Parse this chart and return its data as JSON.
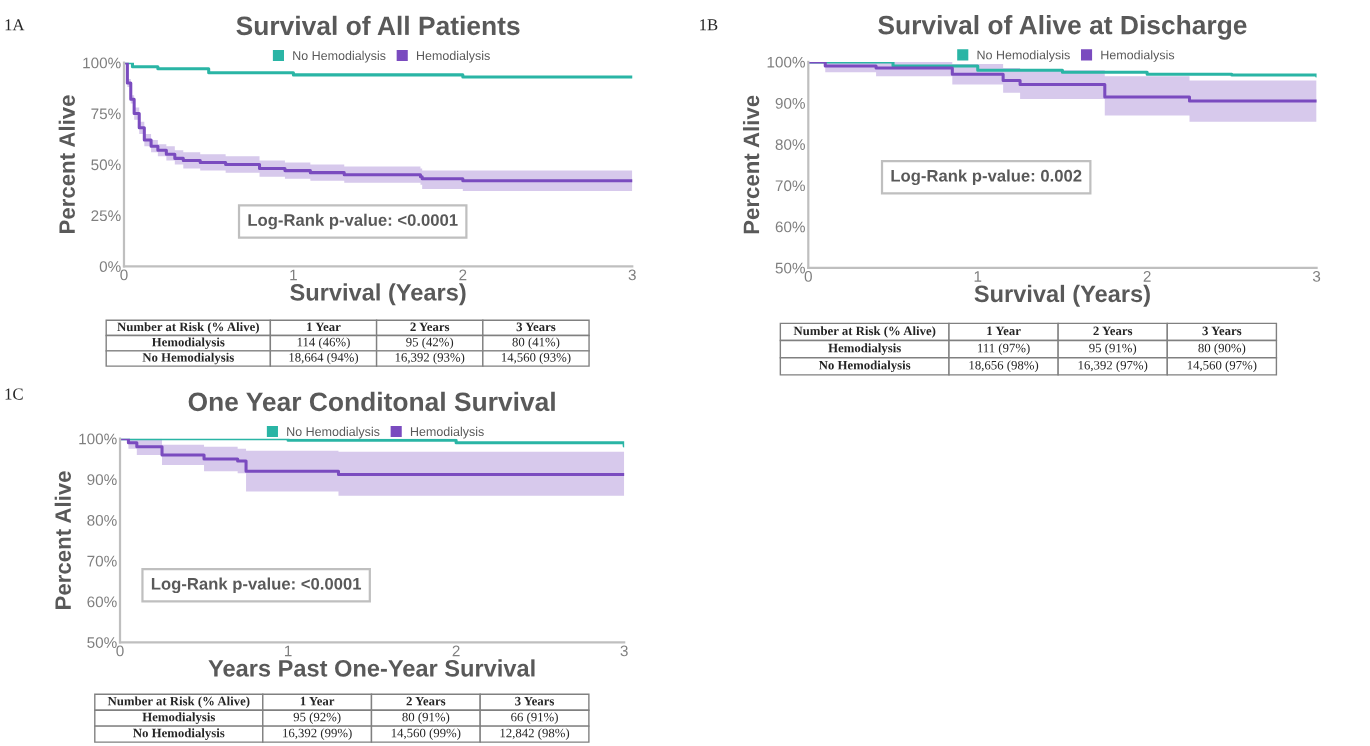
{
  "chart_data": [
    {
      "type": "step",
      "title": "Survival of All Patients",
      "xlabel": "Survival (Years)",
      "ylabel": "Percent Alive",
      "xlim": [
        0,
        3
      ],
      "xticks": [
        0,
        1,
        2,
        3
      ],
      "ylim": [
        0,
        100
      ],
      "yticks": [
        {
          "value": 0,
          "label": "0%"
        },
        {
          "value": 25,
          "label": "25%"
        },
        {
          "value": 50,
          "label": "50%"
        },
        {
          "value": 75,
          "label": "75%"
        },
        {
          "value": 100,
          "label": "100%"
        }
      ],
      "legend": "top",
      "grid": false,
      "series": [
        {
          "name": "No Hemodialysis",
          "color": "#2ab5a5",
          "x": [
            0,
            0.05,
            0.2,
            0.5,
            1,
            1.5,
            2,
            3
          ],
          "values": [
            100,
            98,
            97,
            95,
            94,
            94,
            93,
            93
          ]
        },
        {
          "name": "Hemodialysis",
          "color": "#7a4bbf",
          "x": [
            0,
            0.02,
            0.04,
            0.06,
            0.09,
            0.12,
            0.16,
            0.2,
            0.25,
            0.3,
            0.35,
            0.45,
            0.6,
            0.8,
            0.95,
            1.1,
            1.3,
            1.5,
            1.75,
            1.76,
            2.0,
            2.5,
            3.0
          ],
          "values": [
            100,
            90,
            82,
            75,
            68,
            62,
            59,
            57,
            55,
            53,
            52,
            51,
            50,
            48,
            47,
            46,
            45,
            45,
            44,
            43,
            42,
            42,
            42
          ],
          "lower": [
            100,
            88,
            80,
            72,
            65,
            59,
            56,
            54,
            52,
            50,
            48,
            47,
            46,
            44,
            43,
            42,
            41,
            41,
            40,
            38,
            37,
            37,
            37
          ],
          "upper": [
            100,
            92,
            84,
            78,
            71,
            65,
            62,
            60,
            59,
            57,
            56,
            55,
            54,
            52,
            51,
            50,
            49,
            49,
            48,
            47,
            47,
            47,
            47
          ]
        }
      ],
      "annotations": [
        "1A",
        "Log-Rank p-value: <0.0001",
        "Number at Risk (% Alive)",
        "1 Year",
        "2 Years",
        "3 Years",
        "Hemodialysis",
        "114 (46%)",
        "95 (42%)",
        "80 (41%)",
        "No Hemodialysis",
        "18,664 (94%)",
        "16,392 (93%)",
        "14,560 (93%)"
      ]
    },
    {
      "type": "step",
      "title": "Survival of Alive at Discharge",
      "xlabel": "Survival (Years)",
      "ylabel": "Percent Alive",
      "xlim": [
        0,
        3
      ],
      "xticks": [
        0,
        1,
        2,
        3
      ],
      "ylim": [
        50,
        100
      ],
      "yticks": [
        {
          "value": 50,
          "label": "50%"
        },
        {
          "value": 60,
          "label": "60%"
        },
        {
          "value": 70,
          "label": "70%"
        },
        {
          "value": 80,
          "label": "80%"
        },
        {
          "value": 90,
          "label": "90%"
        },
        {
          "value": 100,
          "label": "100%"
        }
      ],
      "legend": "top",
      "grid": false,
      "series": [
        {
          "name": "No Hemodialysis",
          "color": "#2ab5a5",
          "x": [
            0,
            0.5,
            1,
            1.5,
            2,
            2.5,
            3
          ],
          "values": [
            100,
            99,
            98,
            97.5,
            97,
            96.8,
            96.6
          ]
        },
        {
          "name": "Hemodialysis",
          "color": "#7a4bbf",
          "x": [
            0,
            0.1,
            0.4,
            0.85,
            1.15,
            1.25,
            1.75,
            2.25,
            3
          ],
          "values": [
            100,
            99,
            98.5,
            97,
            95.5,
            94.5,
            91.5,
            90.5,
            90.5
          ],
          "lower": [
            100,
            97.5,
            96.5,
            94.5,
            92.5,
            91,
            87,
            85.5,
            85.5
          ],
          "upper": [
            100,
            100,
            100,
            99.5,
            98.5,
            98,
            96.5,
            95.5,
            95.5
          ]
        }
      ],
      "annotations": [
        "1B",
        "Log-Rank p-value: 0.002",
        "Number at Risk (% Alive)",
        "1 Year",
        "2 Years",
        "3 Years",
        "Hemodialysis",
        "111 (97%)",
        "95 (91%)",
        "80 (90%)",
        "No Hemodialysis",
        "18,656 (98%)",
        "16,392 (97%)",
        "14,560 (97%)"
      ]
    },
    {
      "type": "step",
      "title": "One Year Conditonal Survival",
      "xlabel": "Years Past One-Year Survival",
      "ylabel": "Percent Alive",
      "xlim": [
        0,
        3
      ],
      "xticks": [
        0,
        1,
        2,
        3
      ],
      "ylim": [
        50,
        100
      ],
      "yticks": [
        {
          "value": 50,
          "label": "50%"
        },
        {
          "value": 60,
          "label": "60%"
        },
        {
          "value": 70,
          "label": "70%"
        },
        {
          "value": 80,
          "label": "80%"
        },
        {
          "value": 90,
          "label": "90%"
        },
        {
          "value": 100,
          "label": "100%"
        }
      ],
      "legend": "top",
      "grid": false,
      "series": [
        {
          "name": "No Hemodialysis",
          "color": "#2ab5a5",
          "x": [
            0,
            1,
            2,
            3
          ],
          "values": [
            100,
            99.6,
            99,
            98.2
          ]
        },
        {
          "name": "Hemodialysis",
          "color": "#7a4bbf",
          "x": [
            0,
            0.05,
            0.1,
            0.25,
            0.5,
            0.7,
            0.75,
            1.3,
            3
          ],
          "values": [
            100,
            99,
            98,
            96,
            95,
            94.5,
            92,
            91.2,
            91.2
          ],
          "lower": [
            100,
            97.5,
            96,
            93.5,
            92,
            91.5,
            87,
            86,
            86
          ],
          "upper": [
            100,
            100,
            100,
            98.5,
            98,
            97.5,
            97,
            96.8,
            96.8
          ]
        }
      ],
      "annotations": [
        "1C",
        "Log-Rank p-value: <0.0001",
        "Number at Risk (% Alive)",
        "1 Year",
        "2 Years",
        "3 Years",
        "Hemodialysis",
        "95 (92%)",
        "80 (91%)",
        "66 (91%)",
        "No Hemodialysis",
        "16,392 (99%)",
        "14,560 (99%)",
        "12,842 (98%)"
      ]
    }
  ]
}
